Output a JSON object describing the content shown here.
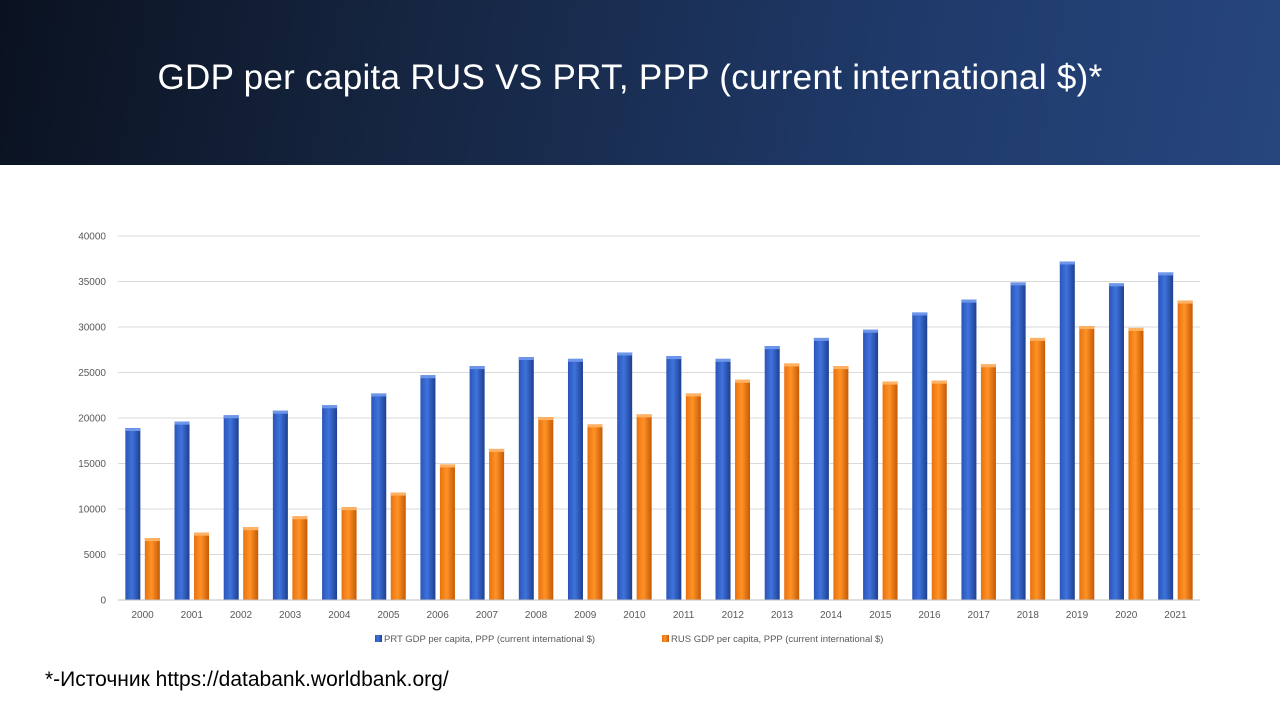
{
  "slide": {
    "title": "GDP per capita RUS VS PRT, PPP (current international $)*",
    "source_note": "*-Источник  https://databank.worldbank.org/"
  },
  "colors": {
    "header_start": "#0a1220",
    "header_end": "#27467e",
    "prt_series": "#2f5fc8",
    "rus_series": "#f07d16",
    "gridline": "#d9d9d9",
    "axis_text": "#595959"
  },
  "chart_data": {
    "type": "bar",
    "title": "",
    "xlabel": "",
    "ylabel": "",
    "ylim": [
      0,
      40000
    ],
    "yticks": [
      0,
      5000,
      10000,
      15000,
      20000,
      25000,
      30000,
      35000,
      40000
    ],
    "grid": true,
    "legend_position": "bottom",
    "categories": [
      "2000",
      "2001",
      "2002",
      "2003",
      "2004",
      "2005",
      "2006",
      "2007",
      "2008",
      "2009",
      "2010",
      "2011",
      "2012",
      "2013",
      "2014",
      "2015",
      "2016",
      "2017",
      "2018",
      "2019",
      "2020",
      "2021"
    ],
    "series": [
      {
        "name": "PRT GDP per capita, PPP (current international $)",
        "color": "#2f5fc8",
        "values": [
          18900,
          19600,
          20300,
          20800,
          21400,
          22700,
          24700,
          25700,
          26700,
          26500,
          27200,
          26800,
          26500,
          27900,
          28800,
          29700,
          31600,
          33000,
          34900,
          37200,
          34800,
          36000
        ]
      },
      {
        "name": "RUS GDP per capita, PPP (current international $)",
        "color": "#f07d16",
        "values": [
          6800,
          7400,
          8000,
          9200,
          10200,
          11800,
          14900,
          16600,
          20100,
          19300,
          20400,
          22700,
          24200,
          26000,
          25700,
          24000,
          24100,
          25900,
          28800,
          30100,
          29900,
          32900
        ]
      }
    ]
  }
}
